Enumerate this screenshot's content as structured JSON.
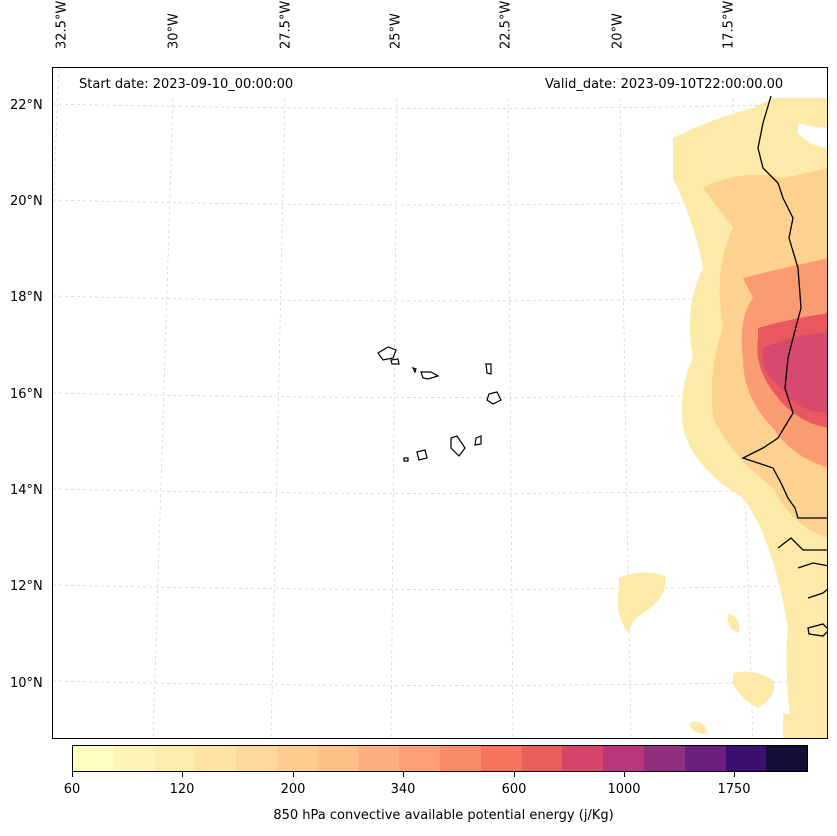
{
  "map": {
    "lon_labels": [
      "32.5°W",
      "30°W",
      "27.5°W",
      "25°W",
      "22.5°W",
      "20°W",
      "17.5°W"
    ],
    "lat_labels": [
      "22°N",
      "20°N",
      "18°N",
      "16°N",
      "14°N",
      "12°N",
      "10°N"
    ],
    "start_date": "Start date: 2023-09-10_00:00:00",
    "valid_date": "Valid_date: 2023-09-10T22:00:00.00"
  },
  "colorbar": {
    "tick_labels": [
      "60",
      "120",
      "200",
      "340",
      "600",
      "1000",
      "1750"
    ],
    "label": "850 hPa convective available potential energy (j/Kg)",
    "colors": [
      "#fcfdbf",
      "#fcf5b6",
      "#fcedad",
      "#fde4a3",
      "#fdd999",
      "#fdcd8f",
      "#fdc087",
      "#fdb07e",
      "#fd9f74",
      "#fa8b67",
      "#f6745c",
      "#eb5f5b",
      "#d8456b",
      "#b7377a",
      "#91307f",
      "#6b1f7f",
      "#3b0f6f",
      "#150e37"
    ]
  }
}
